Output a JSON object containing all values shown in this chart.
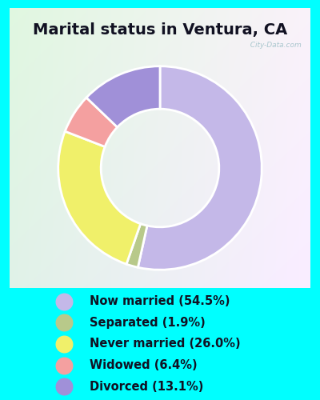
{
  "title": "Marital status in Ventura, CA",
  "background_outer": "#00FFFF",
  "slices": [
    {
      "label": "Now married (54.5%)",
      "value": 54.5,
      "color": "#c4b8e8"
    },
    {
      "label": "Separated (1.9%)",
      "value": 1.9,
      "color": "#b8c98a"
    },
    {
      "label": "Never married (26.0%)",
      "value": 26.0,
      "color": "#f0f06a"
    },
    {
      "label": "Widowed (6.4%)",
      "value": 6.4,
      "color": "#f4a0a0"
    },
    {
      "label": "Divorced (13.1%)",
      "value": 13.1,
      "color": "#a090d8"
    }
  ],
  "legend_colors": [
    "#c4b8e8",
    "#b8c98a",
    "#f0f06a",
    "#f4a0a0",
    "#a090d8"
  ],
  "watermark": "  City-Data.com",
  "title_fontsize": 14,
  "legend_fontsize": 10.5,
  "startangle": 90
}
